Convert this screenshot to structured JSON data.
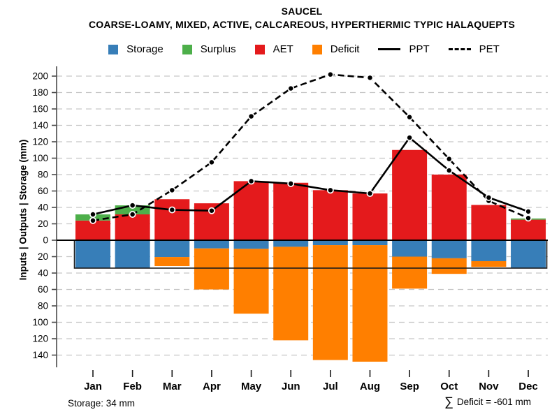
{
  "header": {
    "title": "SAUCEL",
    "subtitle": "COARSE-LOAMY, MIXED, ACTIVE, CALCAREOUS, HYPERTHERMIC TYPIC HALAQUEPTS"
  },
  "y_axis_label": "Inputs | Outputs | Storage (mm)",
  "legend": [
    {
      "label": "Storage",
      "swatch": "square",
      "color": "#377EB8"
    },
    {
      "label": "Surplus",
      "swatch": "square",
      "color": "#4DAF4A"
    },
    {
      "label": "AET",
      "swatch": "square",
      "color": "#E41A1C"
    },
    {
      "label": "Deficit",
      "swatch": "square",
      "color": "#FF7F00"
    },
    {
      "label": "PPT",
      "swatch": "line",
      "color": "#000000"
    },
    {
      "label": "PET",
      "swatch": "dash",
      "color": "#000000"
    }
  ],
  "footer": {
    "storage_note": "Storage: 34 mm",
    "sigma": "∑",
    "deficit_note": "Deficit = -601 mm"
  },
  "colors": {
    "aet": "#E41A1C",
    "storage": "#377EB8",
    "surplus": "#4DAF4A",
    "deficit": "#FF7F00",
    "line": "#000000",
    "grid": "#C6C6C6",
    "axis": "#4A4A4A",
    "zero_line": "#000000"
  },
  "chart_data": {
    "type": "bar",
    "subtype": "water-balance (stacked bars above/below zero with PPT/PET lines)",
    "categories": [
      "Jan",
      "Feb",
      "Mar",
      "Apr",
      "May",
      "Jun",
      "Jul",
      "Aug",
      "Sep",
      "Oct",
      "Nov",
      "Dec"
    ],
    "series": [
      {
        "name": "AET",
        "role": "bar-above-zero",
        "color": "#E41A1C",
        "values": [
          24,
          31.5,
          50,
          45,
          72,
          70,
          61,
          57,
          110,
          80,
          43,
          25
        ]
      },
      {
        "name": "Surplus",
        "role": "bar-above-stacked-on-AET",
        "color": "#4DAF4A",
        "values": [
          7.5,
          11,
          0,
          0,
          0,
          0,
          0,
          0,
          0,
          0,
          0,
          1.5
        ]
      },
      {
        "name": "Storage",
        "role": "bar-below-zero",
        "color": "#377EB8",
        "values": [
          34,
          34,
          20.5,
          10,
          10.5,
          8,
          6,
          6,
          20,
          22,
          25.5,
          34
        ]
      },
      {
        "name": "Deficit",
        "role": "bar-below-stacked",
        "color": "#FF7F00",
        "values": [
          0,
          0,
          11,
          50,
          79,
          114,
          140,
          142,
          39,
          19,
          7,
          0
        ]
      },
      {
        "name": "PPT",
        "role": "line-solid",
        "color": "#000000",
        "values": [
          31.5,
          42.5,
          37,
          36,
          72,
          69,
          61,
          57,
          125,
          85,
          52,
          35
        ]
      },
      {
        "name": "PET",
        "role": "line-dashed",
        "color": "#000000",
        "values": [
          24,
          31.5,
          61,
          95,
          151,
          185,
          202,
          198,
          150,
          99,
          48,
          27
        ]
      }
    ],
    "ylabel": "Inputs | Outputs | Storage (mm)",
    "ylim_up": 200,
    "ylim_down": 140,
    "ytick_step": 20,
    "zero_tick_label": "0",
    "storage_max_mm": 34,
    "deficit_total_mm": -601,
    "grid": "dashed-horizontal",
    "legend_position": "top-center"
  }
}
